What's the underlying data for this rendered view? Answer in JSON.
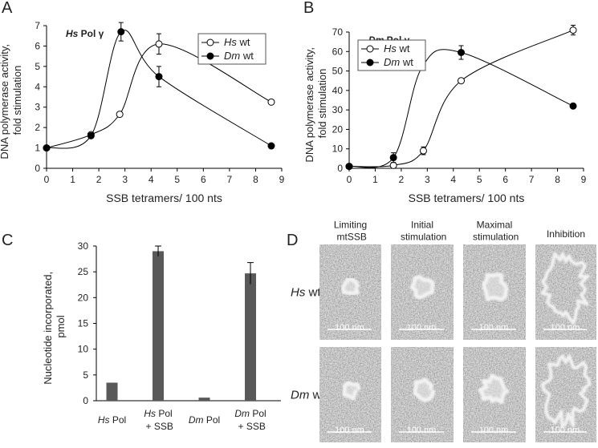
{
  "chart_data": [
    {
      "type": "line",
      "label": "A",
      "annotation": "Hs Pol γ",
      "xlabel": "SSB tetramers/ 100 nts",
      "ylabel": "DNA polymerase activity, fold stimulation",
      "xlim": [
        0,
        9
      ],
      "xticks": [
        0,
        1,
        2,
        3,
        4,
        5,
        6,
        7,
        8,
        9
      ],
      "ylim": [
        0,
        7
      ],
      "yticks": [
        0,
        1,
        2,
        3,
        4,
        5,
        6,
        7
      ],
      "legend": "upper right",
      "series": [
        {
          "name": "Hs wt",
          "marker": "open",
          "color": "#000000",
          "x": [
            0,
            1.7,
            2.8,
            4.3,
            8.6
          ],
          "values": [
            1,
            1.65,
            2.65,
            6.1,
            3.25
          ],
          "errors": [
            null,
            null,
            null,
            0.5,
            null
          ]
        },
        {
          "name": "Dm wt",
          "marker": "filled",
          "color": "#000000",
          "x": [
            0,
            1.7,
            2.85,
            4.3,
            8.6
          ],
          "values": [
            1,
            1.6,
            6.7,
            4.5,
            1.1
          ],
          "errors": [
            null,
            null,
            0.45,
            0.5,
            null
          ]
        }
      ]
    },
    {
      "type": "line",
      "label": "B",
      "annotation": "Dm Pol γ",
      "xlabel": "SSB tetramers/ 100 nts",
      "ylabel": "DNA polymerase activity, fold stimulation",
      "xlim": [
        0,
        9
      ],
      "xticks": [
        0,
        1,
        2,
        3,
        4,
        5,
        6,
        7,
        8,
        9
      ],
      "ylim": [
        0,
        70
      ],
      "yticks": [
        0,
        10,
        20,
        30,
        40,
        50,
        60,
        70
      ],
      "legend": "upper left",
      "series": [
        {
          "name": "Hs wt",
          "marker": "open",
          "color": "#000000",
          "x": [
            0,
            1.7,
            2.85,
            4.3,
            8.6
          ],
          "values": [
            1,
            1.5,
            9,
            45,
            71
          ],
          "errors": [
            null,
            null,
            2,
            null,
            2.5
          ]
        },
        {
          "name": "Dm wt",
          "marker": "filled",
          "color": "#000000",
          "x": [
            0,
            1.7,
            2.8,
            4.3,
            8.6
          ],
          "values": [
            1,
            5.5,
            52,
            59.5,
            32
          ],
          "errors": [
            null,
            2.5,
            null,
            3.5,
            null
          ]
        }
      ]
    },
    {
      "type": "bar",
      "label": "C",
      "ylabel": "Nucleotide incorporated, pmol",
      "categories": [
        "Hs Pol",
        "Hs Pol + SSB",
        "Dm Pol",
        "Dm Pol + SSB"
      ],
      "values": [
        3.5,
        29,
        0.6,
        24.7
      ],
      "errors": [
        null,
        1,
        null,
        2.1
      ],
      "color": "#595959",
      "ylim": [
        0,
        30
      ],
      "yticks": [
        0,
        5,
        10,
        15,
        20,
        25,
        30
      ]
    }
  ],
  "micrographs": {
    "label": "D",
    "columns": [
      "Limiting mtSSB",
      "Initial stimulation",
      "Maximal stimulation",
      "Inhibition"
    ],
    "rows": [
      "Hs wt",
      "Dm wt"
    ],
    "scale_bars": [
      [
        "100 nm",
        "100 nm",
        "100 nm",
        "100 nm"
      ],
      [
        "100 nm",
        "100 nm",
        "100 nm",
        "100 nm"
      ]
    ]
  }
}
